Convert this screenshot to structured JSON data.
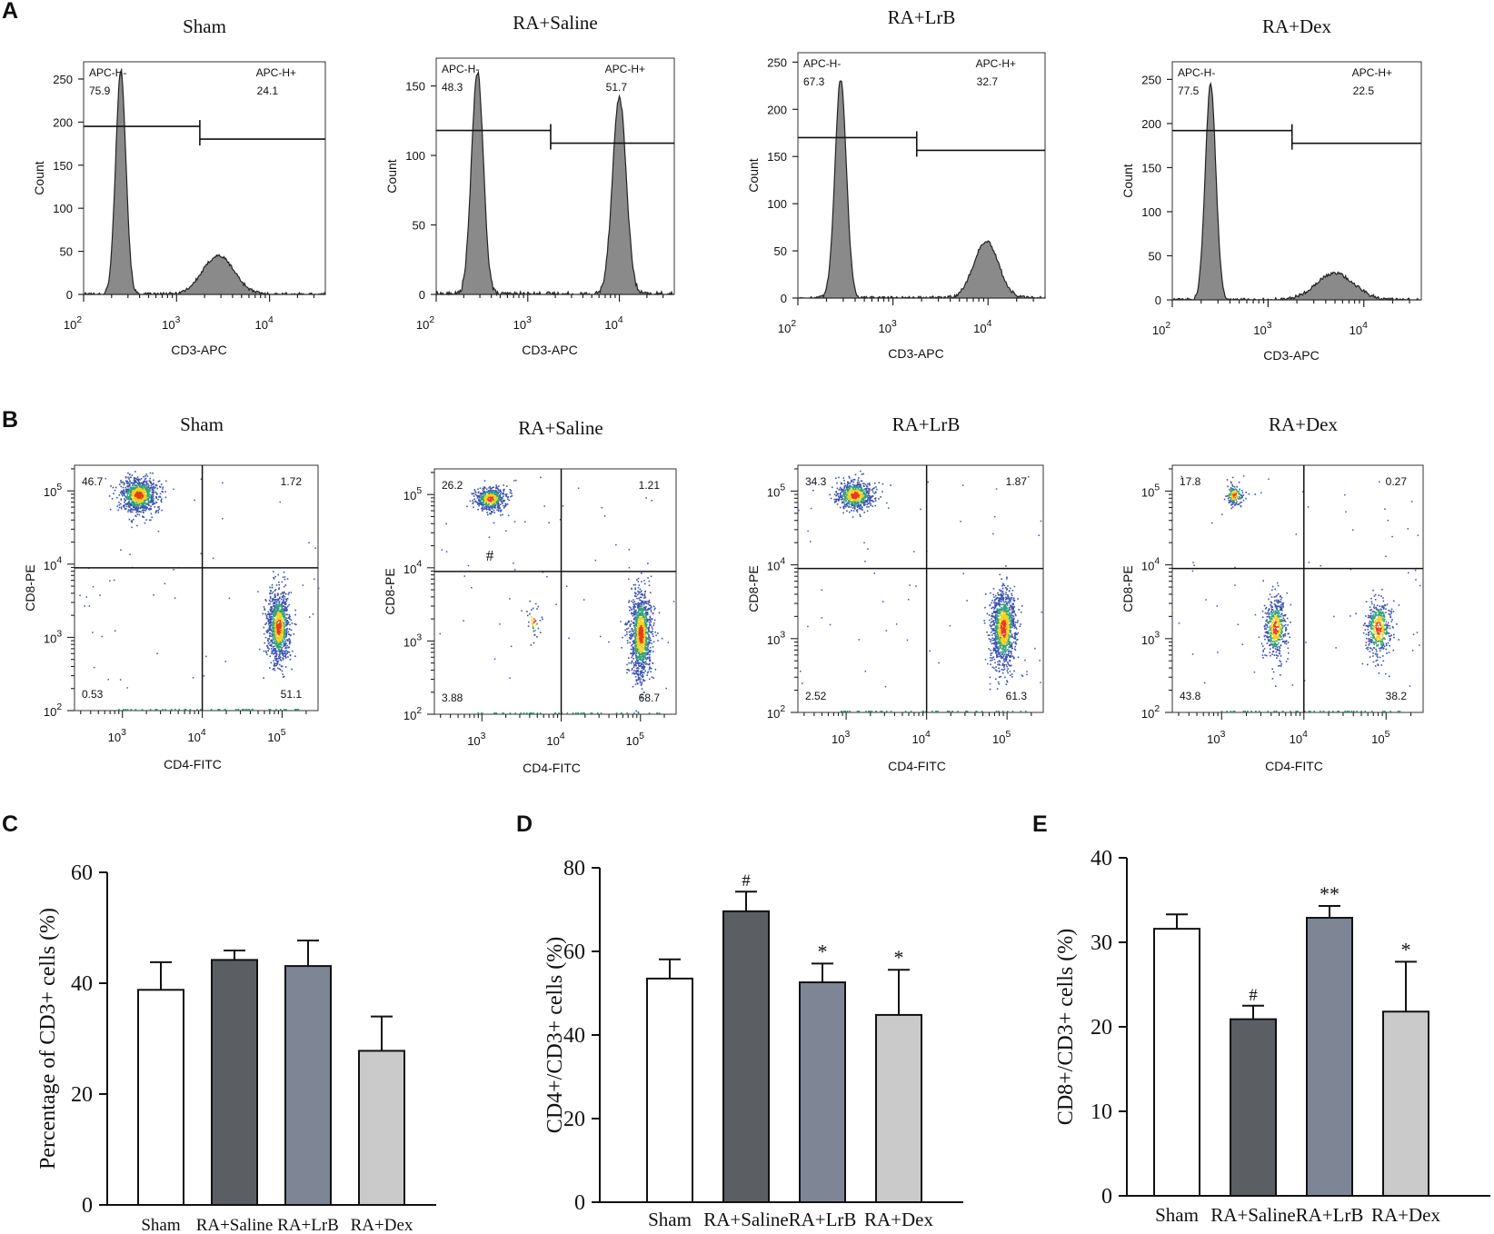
{
  "figure": {
    "panel_labels": [
      "A",
      "B",
      "C",
      "D",
      "E"
    ],
    "groups": [
      "Sham",
      "RA+Saline",
      "RA+LrB",
      "RA+Dex"
    ]
  },
  "colors": {
    "histogram_fill": "#8a8a8a",
    "bar_sham": "#ffffff",
    "bar_saline": "#5b5e63",
    "bar_lrb": "#7e8595",
    "bar_dex": "#cacaca",
    "density_high": "#e83a1e",
    "density_mid": "#f0d21a",
    "density_low": "#33a07a",
    "density_sparse": "#3b52b0"
  },
  "chart_data": [
    {
      "panel": "A",
      "type": "histogram",
      "xlabel": "CD3-APC",
      "ylabel": "Count",
      "x_scale": "log",
      "x_ticks": [
        "10^2",
        "10^3",
        "10^4"
      ],
      "gates": [
        "APC-H-",
        "APC-H+"
      ],
      "plots": [
        {
          "title": "Sham",
          "ylim": [
            0,
            270
          ],
          "yticks": [
            0,
            50,
            100,
            150,
            200,
            250
          ],
          "gate_neg": "75.9",
          "gate_pos": "24.1",
          "gate_y": 195,
          "gate_split": 3.25,
          "peaks": [
            {
              "center": 2.4,
              "height": 260,
              "width": 0.055
            },
            {
              "center": 3.45,
              "height": 45,
              "width": 0.17
            }
          ]
        },
        {
          "title": "RA+Saline",
          "ylim": [
            0,
            170
          ],
          "yticks": [
            0,
            50,
            100,
            150
          ],
          "gate_neg": "48.3",
          "gate_pos": "51.7",
          "gate_y": 118,
          "gate_split": 3.25,
          "peaks": [
            {
              "center": 2.45,
              "height": 160,
              "width": 0.065
            },
            {
              "center": 4.0,
              "height": 142,
              "width": 0.075
            }
          ]
        },
        {
          "title": "RA+LrB",
          "ylim": [
            0,
            260
          ],
          "yticks": [
            0,
            50,
            100,
            150,
            200,
            250
          ],
          "gate_neg": "67.3",
          "gate_pos": "32.7",
          "gate_y": 170,
          "gate_split": 3.25,
          "peaks": [
            {
              "center": 2.45,
              "height": 232,
              "width": 0.06
            },
            {
              "center": 3.98,
              "height": 60,
              "width": 0.13
            }
          ]
        },
        {
          "title": "RA+Dex",
          "ylim": [
            0,
            270
          ],
          "yticks": [
            0,
            50,
            100,
            150,
            200,
            250
          ],
          "gate_neg": "77.5",
          "gate_pos": "22.5",
          "gate_y": 192,
          "gate_split": 3.25,
          "peaks": [
            {
              "center": 2.4,
              "height": 245,
              "width": 0.055
            },
            {
              "center": 3.7,
              "height": 30,
              "width": 0.2
            }
          ]
        }
      ]
    },
    {
      "panel": "B",
      "type": "scatter",
      "xlabel": "CD4-FITC",
      "ylabel": "CD8-PE",
      "x_scale": "log",
      "y_scale": "log",
      "x_ticks": [
        "10^3",
        "10^4",
        "10^5"
      ],
      "y_ticks": [
        "10^2",
        "10^3",
        "10^4",
        "10^5"
      ],
      "plots": [
        {
          "title": "Sham",
          "UL": "46.7",
          "UR": "1.72",
          "LL": "0.53",
          "LR": "51.1",
          "mark": "",
          "clusters": [
            {
              "x": 3.2,
              "y": 4.95,
              "n": 900,
              "sx": 0.12,
              "sy": 0.12
            },
            {
              "x": 4.95,
              "y": 3.15,
              "n": 1000,
              "sx": 0.07,
              "sy": 0.25
            }
          ]
        },
        {
          "title": "RA+Saline",
          "UL": "26.2",
          "UR": "1.21",
          "LL": "3.88",
          "LR": "68.7",
          "mark": "#",
          "clusters": [
            {
              "x": 3.1,
              "y": 4.95,
              "n": 500,
              "sx": 0.1,
              "sy": 0.08
            },
            {
              "x": 5.0,
              "y": 3.1,
              "n": 1100,
              "sx": 0.07,
              "sy": 0.3
            },
            {
              "x": 3.65,
              "y": 3.3,
              "n": 40,
              "sx": 0.05,
              "sy": 0.12
            }
          ]
        },
        {
          "title": "RA+LrB",
          "UL": "34.3",
          "UR": "1.87",
          "LL": "2.52",
          "LR": "61.3",
          "mark": "",
          "clusters": [
            {
              "x": 3.1,
              "y": 4.95,
              "n": 650,
              "sx": 0.12,
              "sy": 0.1
            },
            {
              "x": 4.95,
              "y": 3.15,
              "n": 1100,
              "sx": 0.08,
              "sy": 0.27
            }
          ]
        },
        {
          "title": "RA+Dex",
          "UL": "17.8",
          "UR": "0.27",
          "LL": "43.8",
          "LR": "38.2",
          "mark": "",
          "clusters": [
            {
              "x": 3.15,
              "y": 4.95,
              "n": 160,
              "sx": 0.06,
              "sy": 0.07
            },
            {
              "x": 3.65,
              "y": 3.15,
              "n": 500,
              "sx": 0.07,
              "sy": 0.2
            },
            {
              "x": 4.9,
              "y": 3.15,
              "n": 450,
              "sx": 0.08,
              "sy": 0.2
            }
          ]
        }
      ]
    },
    {
      "panel": "C",
      "type": "bar",
      "categories": [
        "Sham",
        "RA+Saline",
        "RA+LrB",
        "RA+Dex"
      ],
      "values": [
        38.8,
        44.2,
        43.1,
        27.8
      ],
      "errors": [
        5.0,
        1.7,
        4.6,
        6.2
      ],
      "marks": [
        "",
        "",
        "",
        ""
      ],
      "ylabel": "Percentage of CD3+ cells (%)",
      "ylim": [
        0,
        60
      ],
      "yticks": [
        0,
        20,
        40,
        60
      ]
    },
    {
      "panel": "D",
      "type": "bar",
      "categories": [
        "Sham",
        "RA+Saline",
        "RA+LrB",
        "RA+Dex"
      ],
      "values": [
        53.5,
        69.6,
        52.6,
        44.8
      ],
      "errors": [
        4.6,
        4.7,
        4.5,
        10.8
      ],
      "marks": [
        "",
        "#",
        "*",
        "*"
      ],
      "ylabel": "CD4+/CD3+ cells (%)",
      "ylim": [
        0,
        80
      ],
      "yticks": [
        0,
        20,
        40,
        60,
        80
      ]
    },
    {
      "panel": "E",
      "type": "bar",
      "categories": [
        "Sham",
        "RA+Saline",
        "RA+LrB",
        "RA+Dex"
      ],
      "values": [
        31.6,
        20.9,
        32.9,
        21.8
      ],
      "errors": [
        1.7,
        1.6,
        1.4,
        5.9
      ],
      "marks": [
        "",
        "#",
        "**",
        "*"
      ],
      "ylabel": "CD8+/CD3+ cells (%)",
      "ylim": [
        0,
        40
      ],
      "yticks": [
        0,
        10,
        20,
        30,
        40
      ]
    }
  ]
}
